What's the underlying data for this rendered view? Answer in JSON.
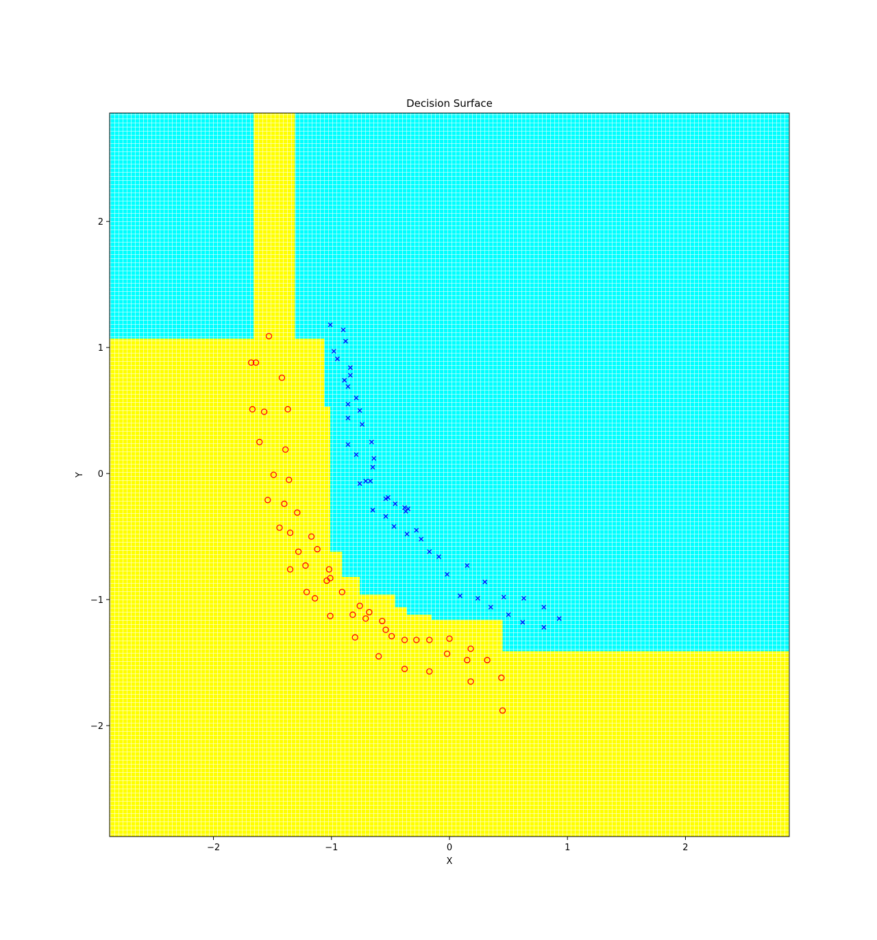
{
  "chart_data": {
    "type": "scatter",
    "title": "Decision Surface",
    "xlabel": "X",
    "ylabel": "Y",
    "xlim": [
      -2.88,
      2.88
    ],
    "ylim": [
      -2.88,
      2.86
    ],
    "xticks": [
      -2,
      -1,
      0,
      1,
      2
    ],
    "yticks": [
      -2,
      -1,
      0,
      1,
      2
    ],
    "xtick_labels": [
      "−2",
      "−1",
      "0",
      "1",
      "2"
    ],
    "ytick_labels": [
      "−2",
      "−1",
      "0",
      "1",
      "2"
    ],
    "grid": false,
    "legend": "none",
    "colors": {
      "class_0_region": "#ffff00",
      "class_1_region": "#00ffff",
      "class_0_marker": "#ff0000",
      "class_1_marker": "#0000ff"
    },
    "regions": [
      {
        "class": 1,
        "x": [
          -2.88,
          2.88
        ],
        "y": [
          -2.88,
          2.86
        ]
      },
      {
        "class": 0,
        "x": [
          -2.88,
          2.88
        ],
        "y": [
          -2.88,
          -1.41
        ]
      },
      {
        "class": 0,
        "x": [
          -2.88,
          0.45
        ],
        "y": [
          -2.88,
          -1.16
        ]
      },
      {
        "class": 0,
        "x": [
          -2.88,
          -0.15
        ],
        "y": [
          -2.88,
          -1.12
        ]
      },
      {
        "class": 0,
        "x": [
          -2.88,
          -0.36
        ],
        "y": [
          -2.88,
          -1.06
        ]
      },
      {
        "class": 0,
        "x": [
          -2.88,
          -0.46
        ],
        "y": [
          -2.88,
          -0.96
        ]
      },
      {
        "class": 0,
        "x": [
          -2.88,
          -0.76
        ],
        "y": [
          -2.88,
          -0.82
        ]
      },
      {
        "class": 0,
        "x": [
          -2.88,
          -0.91
        ],
        "y": [
          -2.88,
          -0.62
        ]
      },
      {
        "class": 0,
        "x": [
          -2.88,
          -1.01
        ],
        "y": [
          -2.88,
          0.53
        ]
      },
      {
        "class": 0,
        "x": [
          -2.88,
          -1.06
        ],
        "y": [
          -2.88,
          1.07
        ]
      },
      {
        "class": 0,
        "x": [
          -1.66,
          -1.31
        ],
        "y": [
          -2.88,
          2.86
        ]
      }
    ],
    "series": [
      {
        "class": 0,
        "marker": "circle",
        "x": [
          -1.53,
          -1.68,
          -1.64,
          -1.42,
          -1.67,
          -1.57,
          -1.37,
          -1.61,
          -1.39,
          -1.49,
          -1.36,
          -1.54,
          -1.4,
          -1.29,
          -1.44,
          -1.35,
          -1.17,
          -1.12,
          -1.28,
          -1.22,
          -1.35,
          -1.02,
          -1.04,
          -1.01,
          -1.21,
          -1.14,
          -0.91,
          -0.76,
          -0.68,
          -0.82,
          -1.01,
          -0.71,
          -0.57,
          -0.54,
          -0.8,
          -0.49,
          -0.38,
          -0.28,
          -0.17,
          0.0,
          -0.02,
          0.18,
          -0.6,
          0.15,
          0.32,
          -0.38,
          -0.17,
          0.44,
          0.18,
          0.45
        ],
        "y": [
          1.09,
          0.88,
          0.88,
          0.76,
          0.51,
          0.49,
          0.51,
          0.25,
          0.19,
          -0.01,
          -0.05,
          -0.21,
          -0.24,
          -0.31,
          -0.43,
          -0.47,
          -0.5,
          -0.6,
          -0.62,
          -0.73,
          -0.76,
          -0.76,
          -0.85,
          -0.83,
          -0.94,
          -0.99,
          -0.94,
          -1.05,
          -1.1,
          -1.12,
          -1.13,
          -1.15,
          -1.17,
          -1.24,
          -1.3,
          -1.29,
          -1.32,
          -1.32,
          -1.32,
          -1.31,
          -1.43,
          -1.39,
          -1.45,
          -1.48,
          -1.48,
          -1.55,
          -1.57,
          -1.62,
          -1.65,
          -1.88
        ]
      },
      {
        "class": 1,
        "marker": "x",
        "x": [
          -1.01,
          -0.9,
          -0.88,
          -0.98,
          -0.95,
          -0.84,
          -0.89,
          -0.84,
          -0.86,
          -0.79,
          -0.86,
          -0.76,
          -0.86,
          -0.74,
          -0.66,
          -0.86,
          -0.64,
          -0.79,
          -0.65,
          -0.71,
          -0.67,
          -0.76,
          -0.52,
          -0.54,
          -0.46,
          -0.38,
          -0.37,
          -0.35,
          -0.65,
          -0.54,
          -0.47,
          -0.28,
          -0.36,
          -0.24,
          -0.17,
          -0.09,
          0.15,
          -0.02,
          0.3,
          0.09,
          0.24,
          0.46,
          0.63,
          0.35,
          0.8,
          0.5,
          0.93,
          0.62,
          0.8
        ],
        "y": [
          1.18,
          1.14,
          1.05,
          0.97,
          0.91,
          0.84,
          0.74,
          0.78,
          0.69,
          0.6,
          0.55,
          0.5,
          0.44,
          0.39,
          0.25,
          0.23,
          0.12,
          0.15,
          0.05,
          -0.06,
          -0.06,
          -0.08,
          -0.19,
          -0.2,
          -0.24,
          -0.27,
          -0.3,
          -0.28,
          -0.29,
          -0.34,
          -0.42,
          -0.45,
          -0.48,
          -0.52,
          -0.62,
          -0.66,
          -0.73,
          -0.8,
          -0.86,
          -0.97,
          -0.99,
          -0.98,
          -0.99,
          -1.06,
          -1.06,
          -1.12,
          -1.15,
          -1.18,
          -1.22
        ]
      }
    ]
  }
}
